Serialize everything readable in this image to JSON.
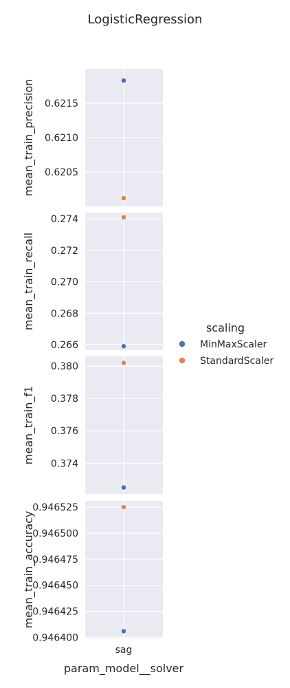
{
  "figure": {
    "title": "LogisticRegression",
    "xlabel": "param_model__solver",
    "x_tick_labels": [
      "sag"
    ],
    "legend_title": "scaling",
    "legend_placement": "right-center",
    "legend_entries": [
      "MinMaxScaler",
      "StandardScaler"
    ]
  },
  "colors": {
    "MinMaxScaler": "#4c72b0",
    "StandardScaler": "#dd8452",
    "axes_background": "#eaeaf2",
    "grid": "#ffffff",
    "text": "#262626"
  },
  "chart_data": [
    {
      "type": "scatter",
      "ylabel": "mean_train_precision",
      "ylim": [
        6200.0,
        6220.0
      ],
      "y_scale_factor": 0.0001,
      "yticks": [
        6205,
        6210,
        6215
      ],
      "ytick_labels": [
        "0.6205",
        "0.6210",
        "0.6215"
      ],
      "categories": [
        "sag"
      ],
      "series": [
        {
          "name": "MinMaxScaler",
          "values": [
            6218.3
          ]
        },
        {
          "name": "StandardScaler",
          "values": [
            6201.2
          ]
        }
      ]
    },
    {
      "type": "scatter",
      "ylabel": "mean_train_recall",
      "ylim": [
        2656.5,
        2744.0
      ],
      "y_scale_factor": 0.0001,
      "yticks": [
        2660,
        2680,
        2700,
        2720,
        2740
      ],
      "ytick_labels": [
        "0.266",
        "0.268",
        "0.270",
        "0.272",
        "0.274"
      ],
      "categories": [
        "sag"
      ],
      "series": [
        {
          "name": "MinMaxScaler",
          "values": [
            2659
          ]
        },
        {
          "name": "StandardScaler",
          "values": [
            2741
          ]
        }
      ]
    },
    {
      "type": "scatter",
      "ylabel": "mean_train_f1",
      "ylim": [
        3721.0,
        3806.0
      ],
      "y_scale_factor": 0.0001,
      "yticks": [
        3740,
        3760,
        3780,
        3800
      ],
      "ytick_labels": [
        "0.374",
        "0.376",
        "0.378",
        "0.380"
      ],
      "categories": [
        "sag"
      ],
      "series": [
        {
          "name": "MinMaxScaler",
          "values": [
            3725
          ]
        },
        {
          "name": "StandardScaler",
          "values": [
            3802
          ]
        }
      ]
    },
    {
      "type": "scatter",
      "ylabel": "mean_train_accuracy",
      "ylim": [
        946399.0,
        946531.0
      ],
      "y_scale_factor": 1e-06,
      "yticks": [
        946400,
        946425,
        946450,
        946475,
        946500,
        946525
      ],
      "ytick_labels": [
        "0.946400",
        "0.946425",
        "0.946450",
        "0.946475",
        "0.946500",
        "0.946525"
      ],
      "categories": [
        "sag"
      ],
      "series": [
        {
          "name": "MinMaxScaler",
          "values": [
            946406
          ]
        },
        {
          "name": "StandardScaler",
          "values": [
            946525
          ]
        }
      ]
    }
  ]
}
